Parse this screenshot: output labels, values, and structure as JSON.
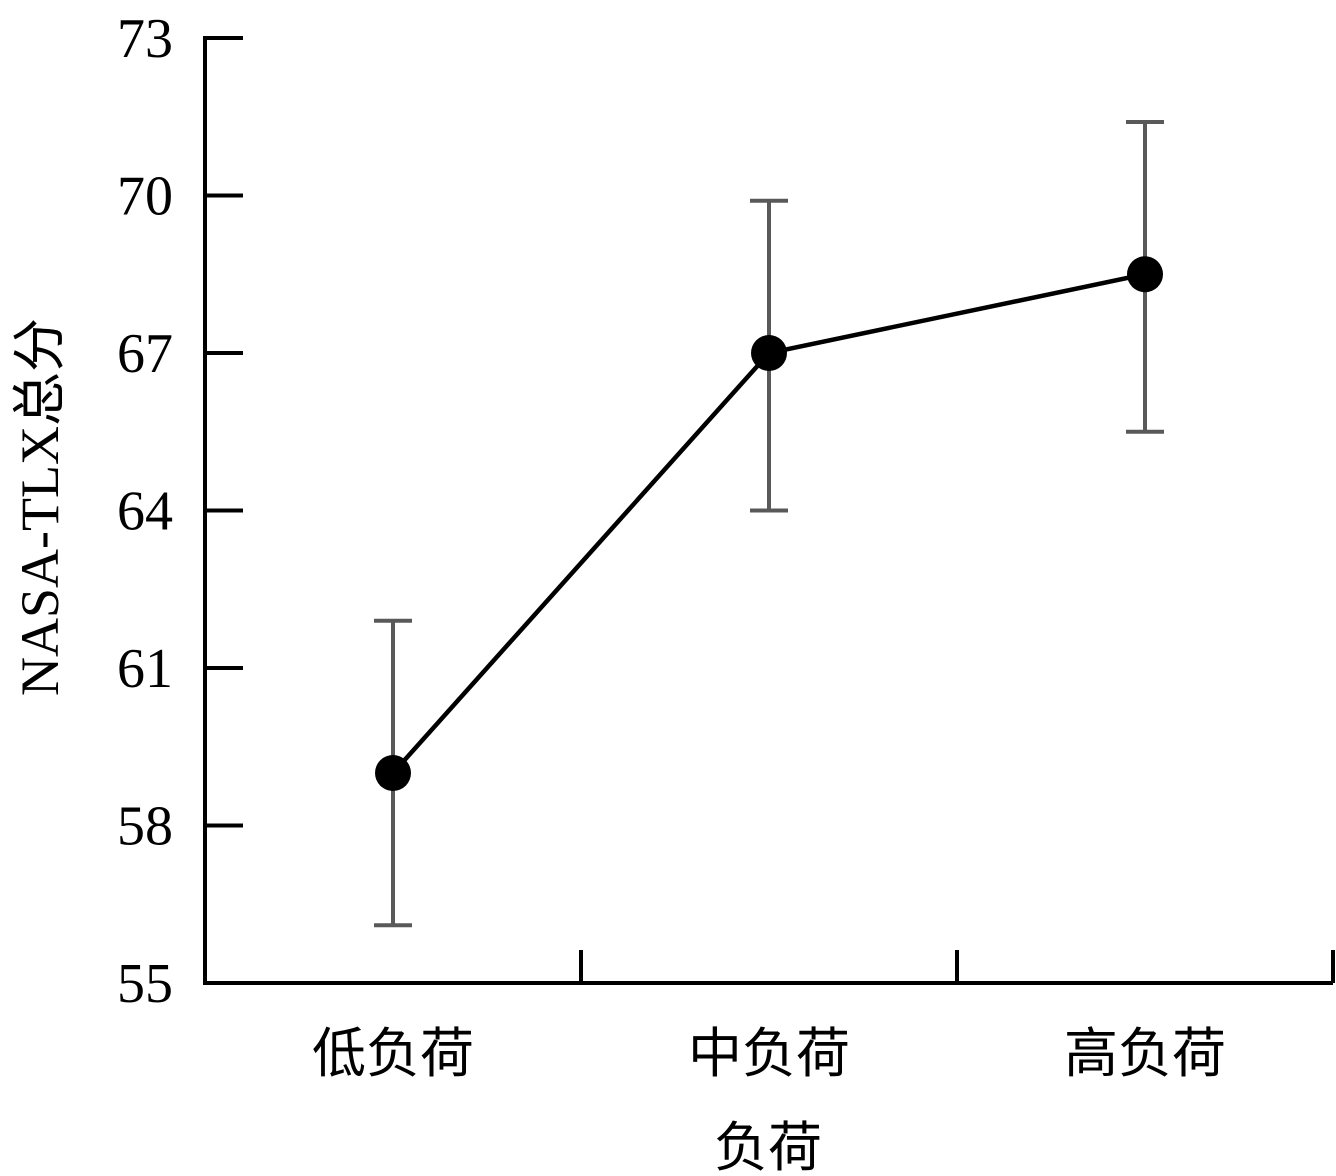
{
  "chart_data": {
    "type": "line",
    "title": "",
    "xlabel": "负荷",
    "ylabel": "NASA-TLX总分",
    "categories": [
      "低负荷",
      "中负荷",
      "高负荷"
    ],
    "series": [
      {
        "values": [
          59.0,
          67.0,
          68.5
        ],
        "error_low": [
          56.1,
          64.0,
          65.5
        ],
        "error_high": [
          61.9,
          69.9,
          71.4
        ]
      }
    ],
    "ylim": [
      55,
      73
    ],
    "yticks": [
      55,
      58,
      61,
      64,
      67,
      70,
      73
    ],
    "grid": false,
    "colors": {
      "line": "#000000",
      "marker": "#000000",
      "error_bar": "#595959",
      "axis": "#000000"
    }
  }
}
